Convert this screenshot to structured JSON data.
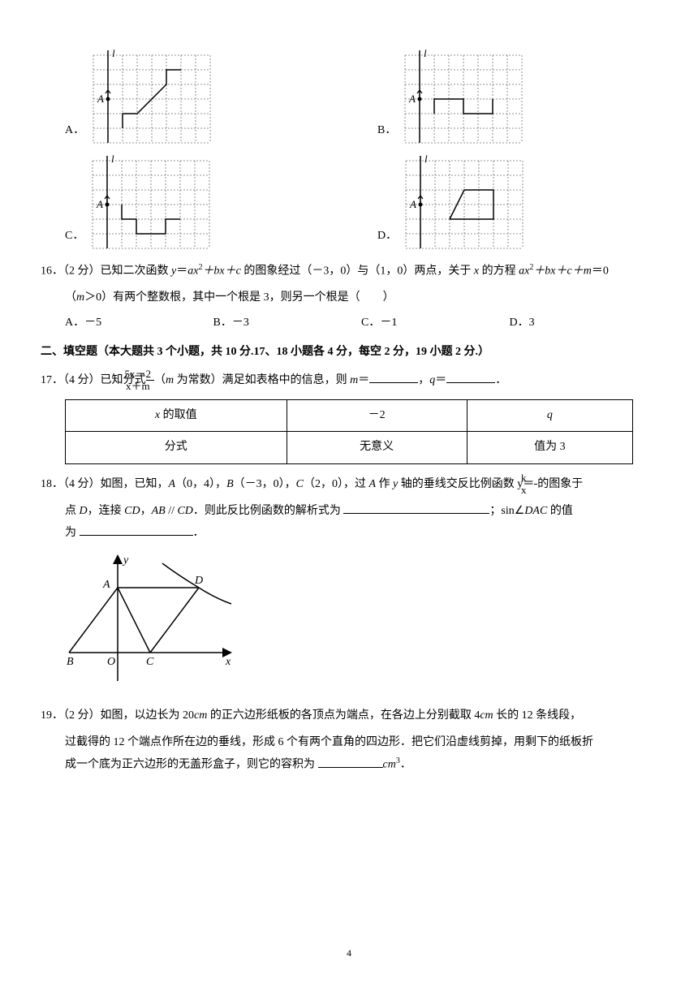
{
  "grid_opts": {
    "cell": 18,
    "cols": 8,
    "rows": 6,
    "stroke": "#707070",
    "dash": "2,2",
    "line_color": "#000000",
    "labels": {
      "l": "l",
      "A": "A"
    }
  },
  "q16": {
    "prefix": "16．（2 分）已知二次函数 ",
    "expr1_pre": "y",
    "expr1_eq": "＝",
    "expr1_a": "ax",
    "expr1_sq": "2",
    "expr1_rest": "＋bx＋c",
    "mid1": " 的图象经过（－3，0）与（1，0）两点，关于 ",
    "x": "x",
    "mid2": " 的方程 ",
    "expr2_a": "ax",
    "expr2_sq": "2",
    "expr2_rest": "＋bx＋c＋m",
    "eq0": "＝0",
    "line2_pre": "（",
    "m": "m",
    "line2_mid": "＞0）有两个整数根，其中一个根是 3，则另一个根是（　　）",
    "options": {
      "A": "A．－5",
      "B": "B．－3",
      "C": "C．－1",
      "D": "D．3"
    }
  },
  "section2": "二、填空题（本大题共 3 个小题，共 10 分.17、18 小题各 4 分，每空 2 分，19 小题 2 分.）",
  "q17": {
    "prefix": "17．（4 分）已知分式",
    "frac_num": "5x－2",
    "frac_den": "x＋m",
    "mid": "（",
    "m": "m",
    "mid2": " 为常数）满足如表格中的信息，则 ",
    "m2": "m",
    "eq1": "＝",
    "comma": "，",
    "q": "q",
    "eq2": "＝",
    "period": "．",
    "table": {
      "r1c1": "x 的取值",
      "r1c2": "－2",
      "r1c3": "q",
      "r2c1": "分式",
      "r2c2": "无意义",
      "r2c3": "值为 3"
    }
  },
  "q18": {
    "line1_a": "18．（4 分）如图，已知，",
    "A": "A",
    "coordA": "（0，4），",
    "B": "B",
    "coordB": "（－3，0），",
    "C": "C",
    "coordC": "（2，0），过 ",
    "A2": "A",
    "mid1": " 作 ",
    "y": "y",
    "mid2": " 轴的垂线交反比例函数 ",
    "yeq": "y＝",
    "frac_num": "k",
    "frac_den": "x",
    "mid3": "的图象于",
    "line2_a": "点 ",
    "D": "D",
    "line2_b": "，连接 ",
    "CD": "CD",
    "line2_c": "，",
    "AB": "AB",
    "par": " // ",
    "CD2": "CD",
    "line2_d": "．则此反比例函数的解析式为 ",
    "line2_e": "；sin∠",
    "DAC": "DAC",
    "line2_f": " 的值",
    "line3": "为 ",
    "period": "．",
    "diagram": {
      "labels": {
        "y": "y",
        "x": "x",
        "A": "A",
        "B": "B",
        "O": "O",
        "C": "C",
        "D": "D"
      }
    }
  },
  "q19": {
    "line1": "19．（2 分）如图，以边长为 20",
    "cm1": "cm",
    "line1b": " 的正六边形纸板的各顶点为端点，在各边上分别截取 4",
    "cm2": "cm",
    "line1c": " 长的 12 条线段，",
    "line2": "过截得的 12 个端点作所在边的垂线，形成 6 个有两个直角的四边形．把它们沿虚线剪掉，用剩下的纸板折",
    "line3a": "成一个底为正六边形的无盖形盒子，则它的容积为 ",
    "cm3": "cm",
    "cube": "3",
    "period": "．"
  },
  "option_letters": {
    "A": "A．",
    "B": "B．",
    "C": "C．",
    "D": "D．"
  },
  "page_number": "4"
}
